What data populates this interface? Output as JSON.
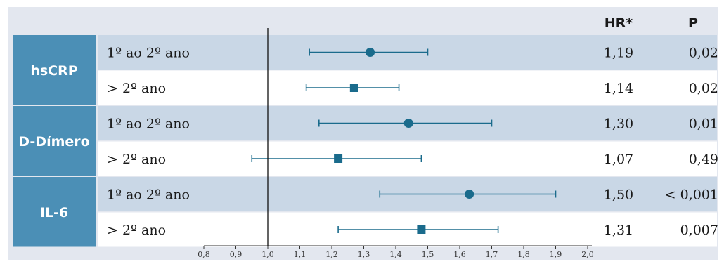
{
  "headers": {
    "hr": "HR*",
    "p": "P"
  },
  "colors": {
    "panel_bg": "#e3e7ef",
    "band": "#c9d7e6",
    "white": "#ffffff",
    "group_box": "#4b8fb6",
    "marker": "#1a6b8c",
    "axis": "#333333"
  },
  "chart_data": {
    "type": "forest",
    "xlim": [
      0.8,
      2.0
    ],
    "reference_line": 1.0,
    "xticks": [
      "0,8",
      "0,9",
      "1,0",
      "1,1",
      "1,2",
      "1,3",
      "1,4",
      "1,5",
      "1,6",
      "1,7",
      "1,8",
      "1,9",
      "2,0"
    ],
    "groups": [
      {
        "name": "hsCRP",
        "rows": [
          {
            "label": "1º ao 2º ano",
            "marker": "circle",
            "estimate": 1.32,
            "lower": 1.13,
            "upper": 1.5,
            "hr": "1,19",
            "p": "0,02"
          },
          {
            "label": "> 2º ano",
            "marker": "square",
            "estimate": 1.27,
            "lower": 1.12,
            "upper": 1.41,
            "hr": "1,14",
            "p": "0,02"
          }
        ]
      },
      {
        "name": "D-Dímero",
        "rows": [
          {
            "label": "1º ao 2º ano",
            "marker": "circle",
            "estimate": 1.44,
            "lower": 1.16,
            "upper": 1.7,
            "hr": "1,30",
            "p": "0,01"
          },
          {
            "label": "> 2º ano",
            "marker": "square",
            "estimate": 1.22,
            "lower": 0.95,
            "upper": 1.48,
            "hr": "1,07",
            "p": "0,49"
          }
        ]
      },
      {
        "name": "IL-6",
        "rows": [
          {
            "label": "1º ao 2º ano",
            "marker": "circle",
            "estimate": 1.63,
            "lower": 1.35,
            "upper": 1.9,
            "hr": "1,50",
            "p": "< 0,001"
          },
          {
            "label": "> 2º ano",
            "marker": "square",
            "estimate": 1.48,
            "lower": 1.22,
            "upper": 1.72,
            "hr": "1,31",
            "p": "0,007"
          }
        ]
      }
    ]
  }
}
